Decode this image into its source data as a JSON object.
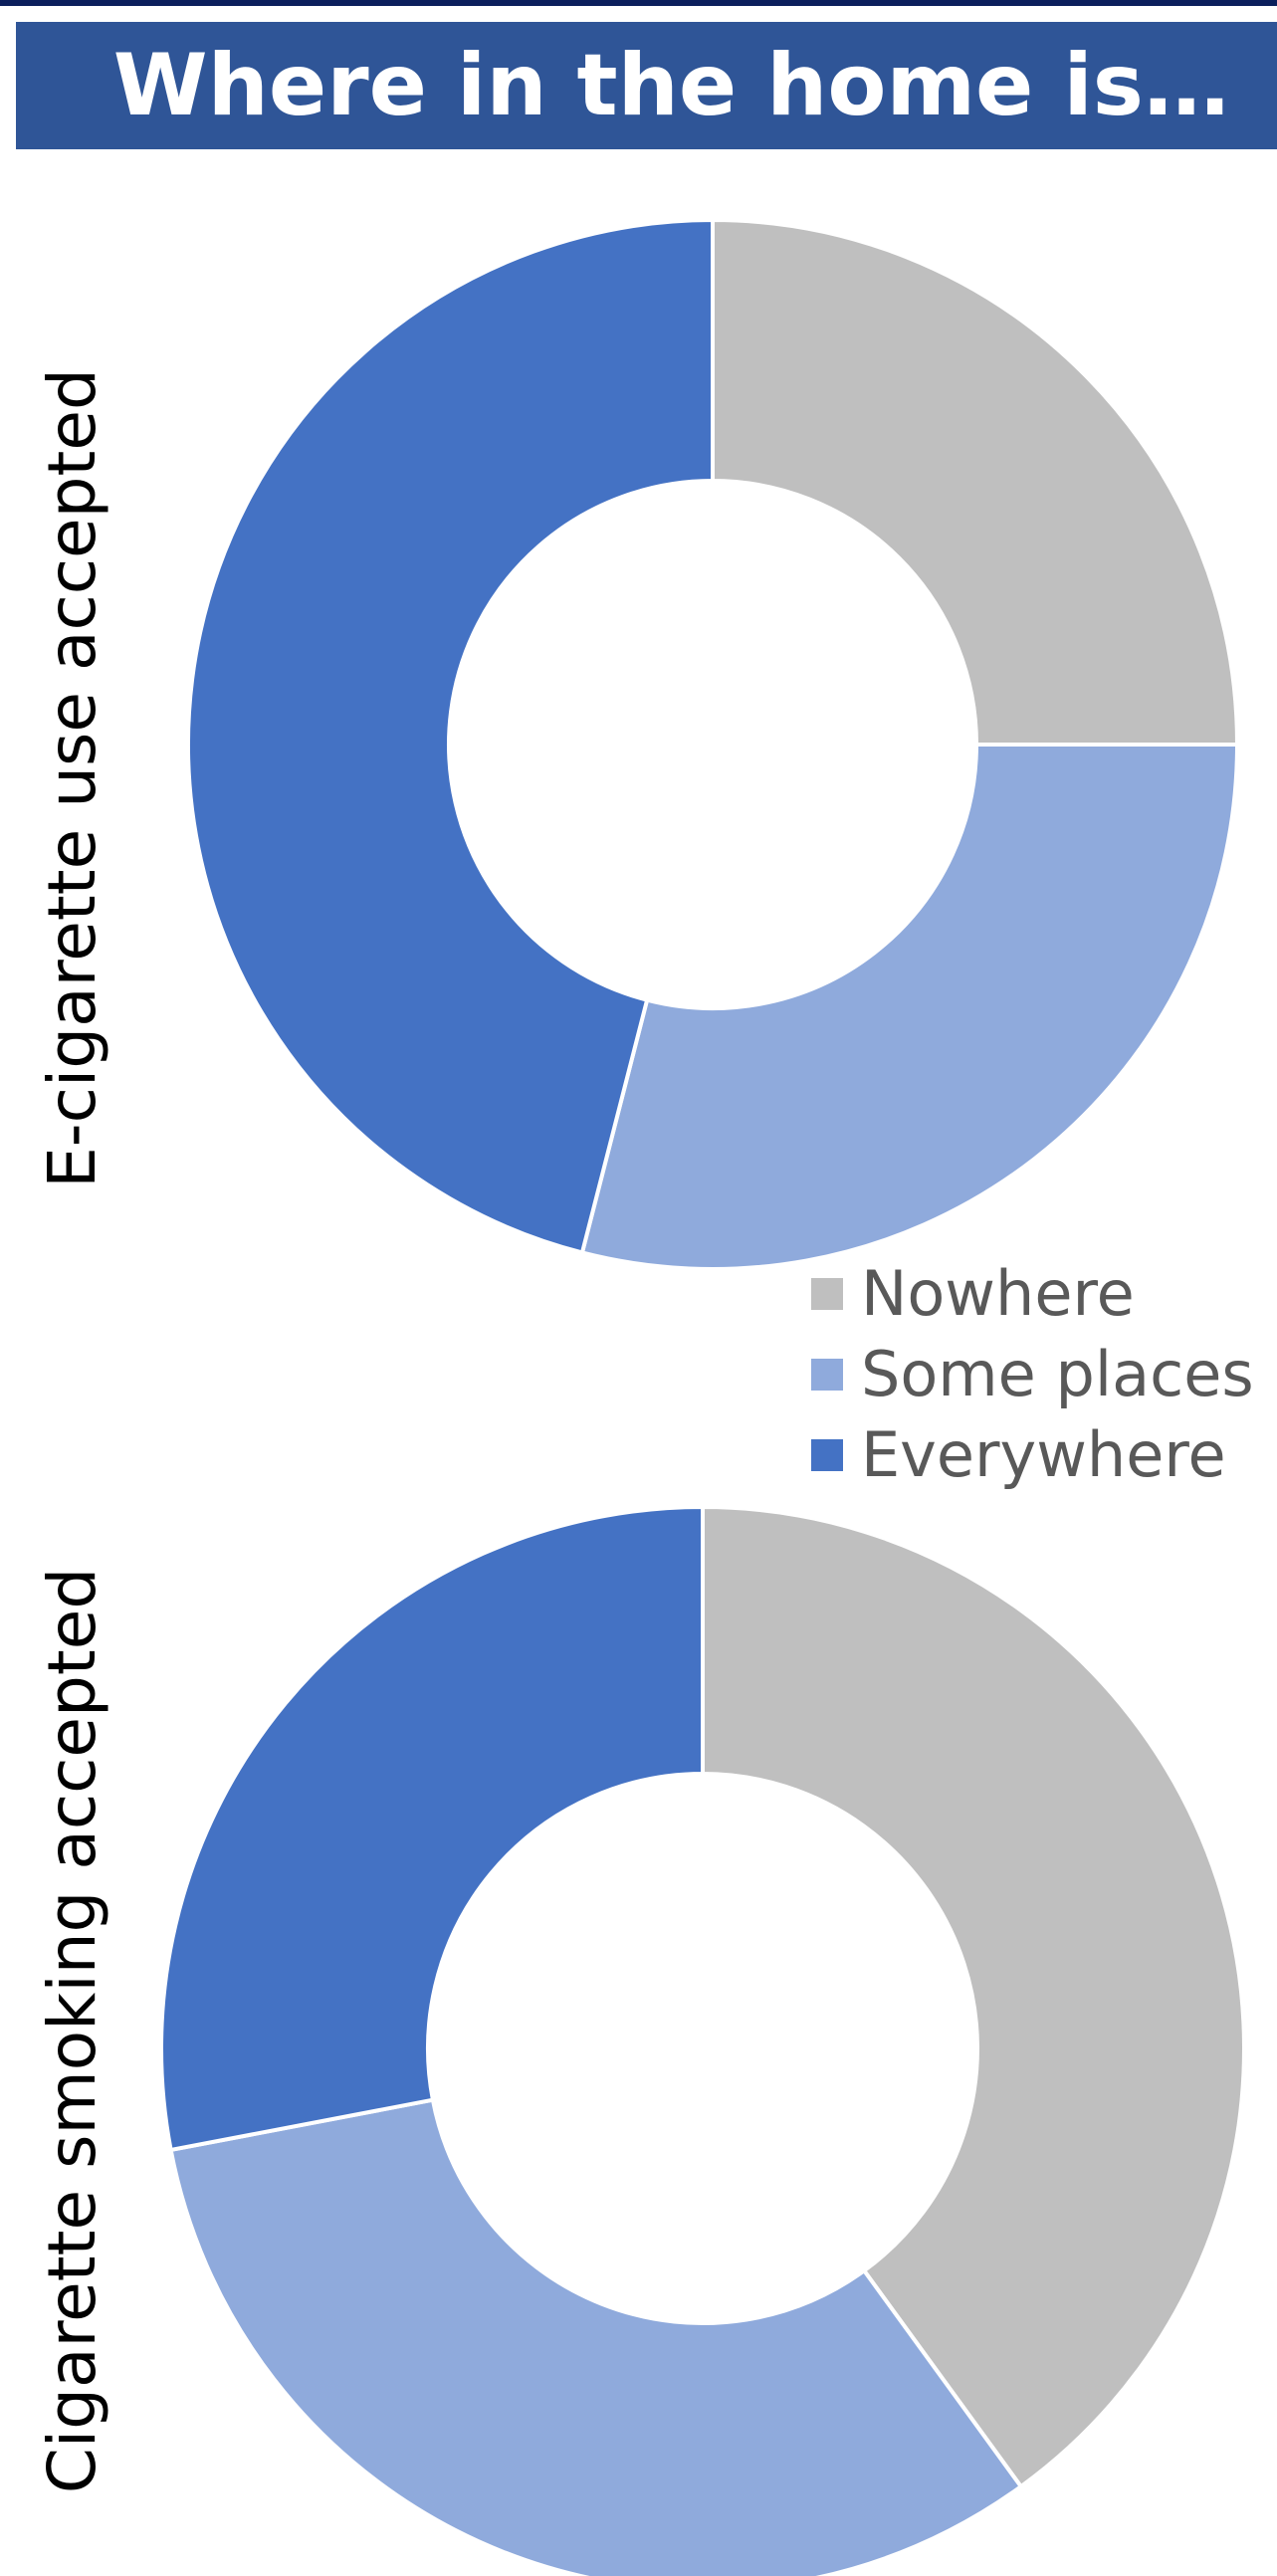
{
  "title": "Where in the home is…",
  "colors": {
    "header_bg": "#2f5597",
    "top_rule": "#0b1f5c",
    "nowhere": "#bfbfbf",
    "some_places": "#8faadc",
    "everywhere": "#4472c4"
  },
  "legend": {
    "items": [
      {
        "label": "Nowhere",
        "color": "#bfbfbf"
      },
      {
        "label": "Some places",
        "color": "#8faadc"
      },
      {
        "label": "Everywhere",
        "color": "#4472c4"
      }
    ]
  },
  "chart_data": [
    {
      "type": "pie",
      "style": "donut",
      "ylabel": "E-cigarette use accepted",
      "categories": [
        "Nowhere",
        "Some places",
        "Everywhere"
      ],
      "values": [
        25,
        29,
        46
      ],
      "unit": "%",
      "data_labels_shown": false,
      "legend_placement": "bottom-right"
    },
    {
      "type": "pie",
      "style": "donut",
      "ylabel": "Cigarette smoking accepted",
      "categories": [
        "Nowhere",
        "Some places",
        "Everywhere"
      ],
      "values": [
        40,
        32,
        28
      ],
      "unit": "%",
      "data_labels_shown": false
    }
  ]
}
